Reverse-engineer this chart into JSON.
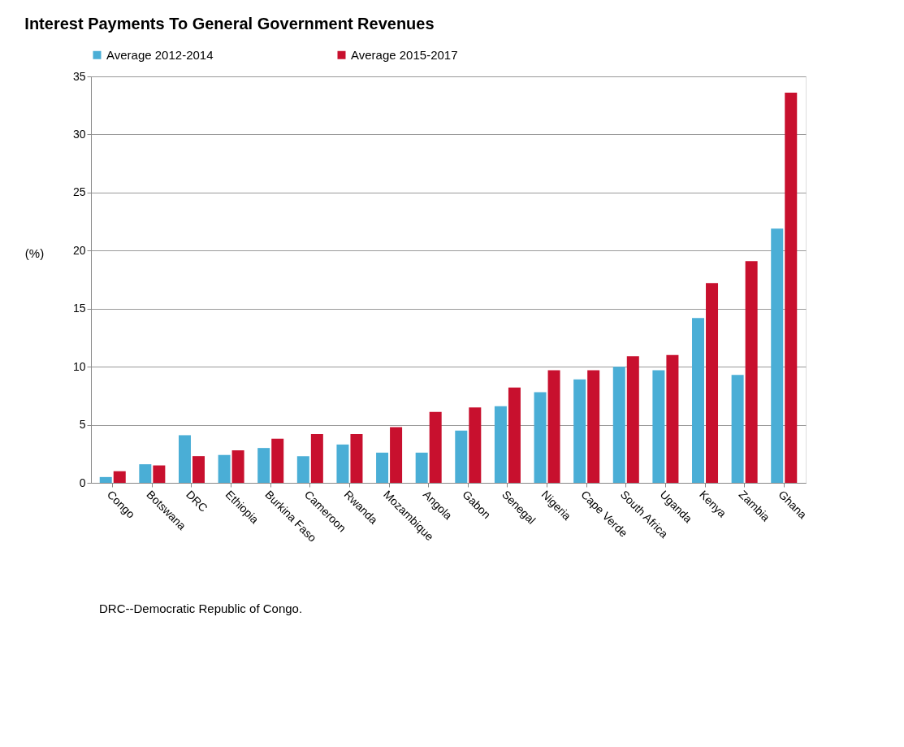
{
  "chart_data": {
    "type": "bar",
    "title": "Interest Payments To General Government Revenues",
    "ylabel": "(%)",
    "categories": [
      "Congo",
      "Botswana",
      "DRC",
      "Ethiopia",
      "Burkina Faso",
      "Cameroon",
      "Rwanda",
      "Mozambique",
      "Angola",
      "Gabon",
      "Senegal",
      "Nigeria",
      "Cape Verde",
      "South Africa",
      "Uganda",
      "Kenya",
      "Zambia",
      "Ghana"
    ],
    "series": [
      {
        "name": "Average 2012-2014",
        "color": "#4aaed6",
        "values": [
          0.5,
          1.6,
          4.1,
          2.4,
          3.0,
          2.3,
          3.3,
          2.6,
          2.6,
          4.5,
          6.6,
          7.8,
          8.9,
          10.0,
          9.7,
          14.2,
          9.3,
          21.9
        ]
      },
      {
        "name": "Average 2015-2017",
        "color": "#c8102e",
        "values": [
          1.0,
          1.5,
          2.3,
          2.8,
          3.8,
          4.2,
          4.2,
          4.8,
          6.1,
          6.5,
          8.2,
          9.7,
          9.7,
          10.9,
          11.0,
          17.2,
          19.1,
          33.6
        ]
      }
    ],
    "ylim": [
      0,
      35
    ],
    "yticks": [
      0,
      5,
      10,
      15,
      20,
      25,
      30,
      35
    ],
    "grid": "y",
    "legend": "top",
    "annotations": [
      "DRC--Democratic Republic of Congo."
    ]
  }
}
